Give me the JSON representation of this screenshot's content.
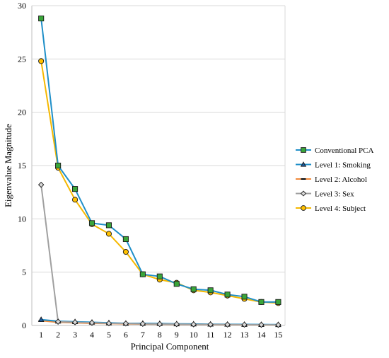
{
  "chart_data": {
    "type": "line",
    "title": "",
    "xlabel": "Principal Component",
    "ylabel": "Eigenvalue Magnitude",
    "x": [
      1,
      2,
      3,
      4,
      5,
      6,
      7,
      8,
      9,
      10,
      11,
      12,
      13,
      14,
      15
    ],
    "xlim": [
      1,
      15
    ],
    "ylim": [
      0,
      30
    ],
    "yticks": [
      0,
      5,
      10,
      15,
      20,
      25,
      30
    ],
    "grid": "horizontal",
    "legend_position": "right",
    "series": [
      {
        "name": "Conventional PCA",
        "line_color": "#1f8fc8",
        "marker": "square",
        "marker_fill": "#3aa63a",
        "values": [
          28.8,
          15.0,
          12.8,
          9.6,
          9.4,
          8.1,
          4.8,
          4.6,
          3.9,
          3.4,
          3.3,
          2.9,
          2.7,
          2.2,
          2.2
        ]
      },
      {
        "name": "Level 1: Smoking",
        "line_color": "#1f8fc8",
        "marker": "triangle",
        "marker_fill": "#1a5aa0",
        "values": [
          0.55,
          0.4,
          0.35,
          0.3,
          0.25,
          0.2,
          0.2,
          0.18,
          0.15,
          0.14,
          0.12,
          0.11,
          0.1,
          0.09,
          0.08
        ]
      },
      {
        "name": "Level 2: Alcohol",
        "line_color": "#f08a3c",
        "marker": "dash",
        "marker_fill": "#000000",
        "values": [
          0.45,
          0.3,
          0.25,
          0.2,
          0.18,
          0.15,
          0.13,
          0.12,
          0.1,
          0.09,
          0.08,
          0.07,
          0.06,
          0.05,
          0.05
        ]
      },
      {
        "name": "Level 3: Sex",
        "line_color": "#a0a0a0",
        "marker": "diamond",
        "marker_fill": "#d9d9d9",
        "values": [
          13.2,
          0.35,
          0.3,
          0.25,
          0.2,
          0.18,
          0.15,
          0.13,
          0.12,
          0.1,
          0.09,
          0.08,
          0.07,
          0.06,
          0.05
        ]
      },
      {
        "name": "Level 4: Subject",
        "line_color": "#f5b800",
        "marker": "circle",
        "marker_fill": "#ffc000",
        "values": [
          24.8,
          14.8,
          11.8,
          9.5,
          8.6,
          6.9,
          4.8,
          4.3,
          4.0,
          3.3,
          3.1,
          2.8,
          2.5,
          2.2,
          2.1
        ]
      }
    ]
  }
}
